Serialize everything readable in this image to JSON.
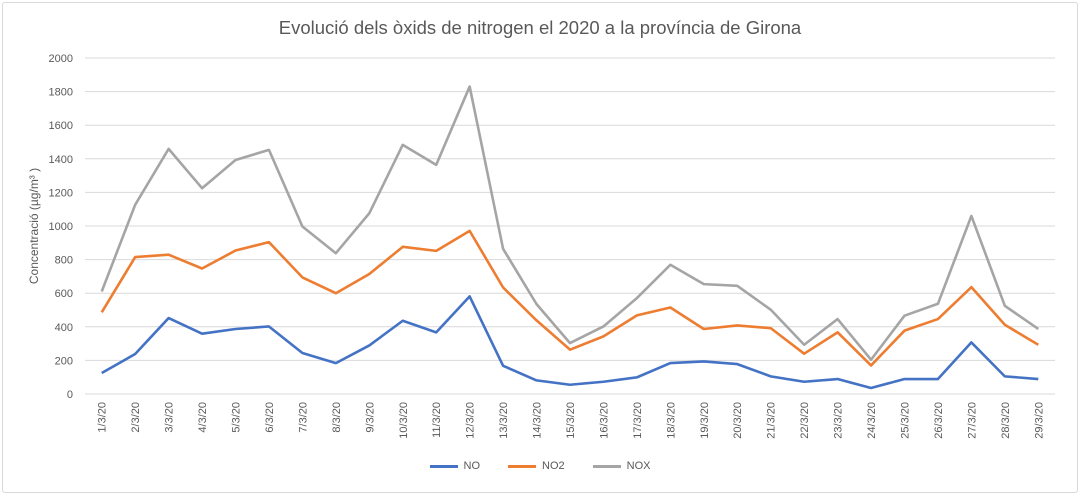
{
  "chart_data": {
    "type": "line",
    "title": "Evolució dels òxids de nitrogen el 2020 a la província de Girona",
    "xlabel": "",
    "ylabel": "Concentració (µg/m³ )",
    "ylim": [
      0,
      2000
    ],
    "yticks": [
      0,
      200,
      400,
      600,
      800,
      1000,
      1200,
      1400,
      1600,
      1800,
      2000
    ],
    "grid": true,
    "legend": "bottom",
    "categories": [
      "1/3/20",
      "2/3/20",
      "3/3/20",
      "4/3/20",
      "5/3/20",
      "6/3/20",
      "7/3/20",
      "8/3/20",
      "9/3/20",
      "10/3/20",
      "11/3/20",
      "12/3/20",
      "13/3/20",
      "14/3/20",
      "15/3/20",
      "16/3/20",
      "17/3/20",
      "18/3/20",
      "19/3/20",
      "20/3/20",
      "21/3/20",
      "22/3/20",
      "23/3/20",
      "24/3/20",
      "25/3/20",
      "26/3/20",
      "27/3/20",
      "28/3/20",
      "29/3/20"
    ],
    "series": [
      {
        "name": "NO",
        "color": "#4472c4",
        "values": [
          125,
          238,
          452,
          359,
          387,
          402,
          244,
          184,
          289,
          436,
          367,
          581,
          168,
          81,
          55,
          73,
          99,
          184,
          194,
          178,
          105,
          73,
          89,
          36,
          89,
          89,
          307,
          105,
          89
        ]
      },
      {
        "name": "NO2",
        "color": "#ed7d31",
        "values": [
          486,
          815,
          829,
          747,
          854,
          904,
          694,
          600,
          714,
          876,
          852,
          971,
          634,
          438,
          264,
          343,
          468,
          515,
          387,
          408,
          392,
          240,
          367,
          170,
          377,
          446,
          636,
          412,
          293
        ]
      },
      {
        "name": "NOX",
        "color": "#a5a5a5",
        "values": [
          610,
          1126,
          1459,
          1225,
          1393,
          1453,
          997,
          838,
          1076,
          1483,
          1364,
          1830,
          864,
          535,
          303,
          402,
          571,
          769,
          654,
          644,
          502,
          293,
          446,
          204,
          466,
          537,
          1060,
          525,
          387
        ]
      }
    ]
  }
}
